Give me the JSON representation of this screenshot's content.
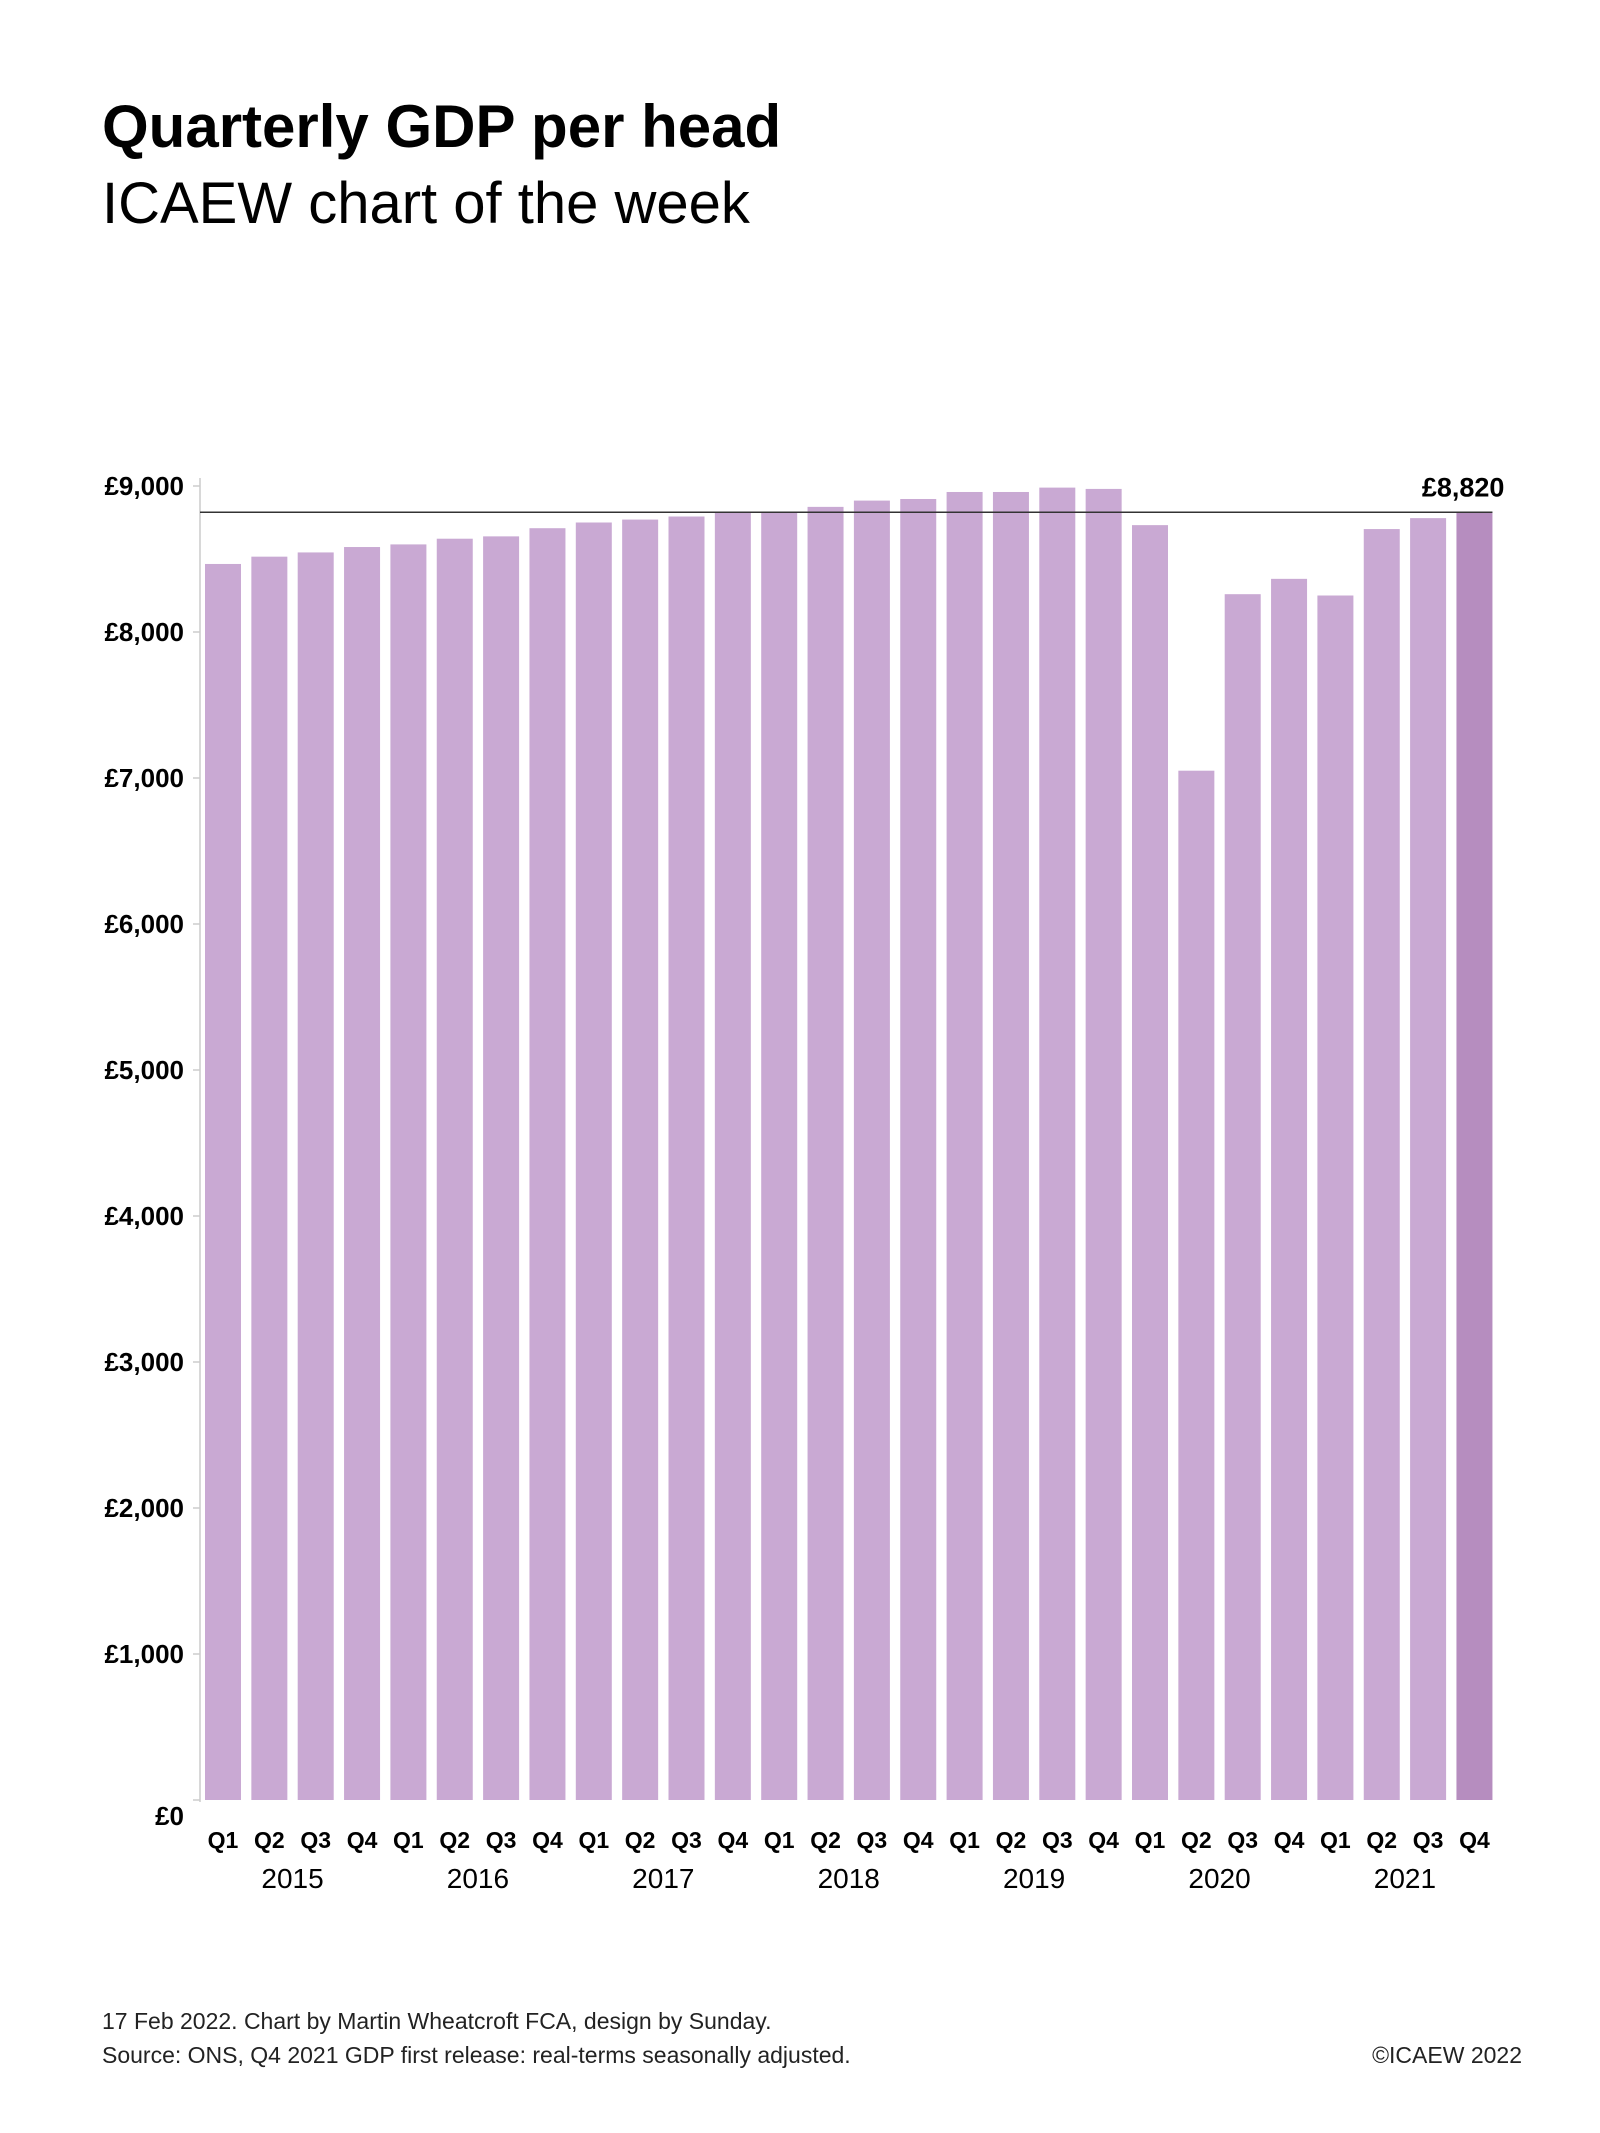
{
  "header": {
    "title": "Quarterly GDP per head",
    "subtitle": "ICAEW chart of the week"
  },
  "chart_data": {
    "type": "bar",
    "title": "Quarterly GDP per head",
    "xlabel": "",
    "ylabel": "",
    "ylim": [
      0,
      9000
    ],
    "yticks": [
      0,
      1000,
      2000,
      3000,
      4000,
      5000,
      6000,
      7000,
      8000,
      9000
    ],
    "ytick_labels": [
      "£0",
      "£1,000",
      "£2,000",
      "£3,000",
      "£4,000",
      "£5,000",
      "£6,000",
      "£7,000",
      "£8,000",
      "£9,000"
    ],
    "categories": [
      "Q1",
      "Q2",
      "Q3",
      "Q4",
      "Q1",
      "Q2",
      "Q3",
      "Q4",
      "Q1",
      "Q2",
      "Q3",
      "Q4",
      "Q1",
      "Q2",
      "Q3",
      "Q4",
      "Q1",
      "Q2",
      "Q3",
      "Q4",
      "Q1",
      "Q2",
      "Q3",
      "Q4",
      "Q1",
      "Q2",
      "Q3",
      "Q4"
    ],
    "years": [
      "2015",
      "2016",
      "2017",
      "2018",
      "2019",
      "2020",
      "2021"
    ],
    "values": [
      8466,
      8516,
      8545,
      8582,
      8600,
      8639,
      8655,
      8711,
      8750,
      8770,
      8791,
      8823,
      8820,
      8857,
      8900,
      8911,
      8959,
      8959,
      8989,
      8980,
      8732,
      7050,
      8259,
      8364,
      8250,
      8705,
      8780,
      8820
    ],
    "reference_line": {
      "value": 8820,
      "label": "£8,820"
    },
    "colors": {
      "bar": "#c9a9d3",
      "highlight": "#b68dbf",
      "line": "#333333"
    },
    "grid": false
  },
  "footer": {
    "line1": "17 Feb 2022.   Chart by Martin Wheatcroft FCA, design by Sunday.",
    "line2": "Source: ONS, Q4 2021 GDP first release: real-terms seasonally adjusted.",
    "copyright": "©ICAEW 2022"
  }
}
